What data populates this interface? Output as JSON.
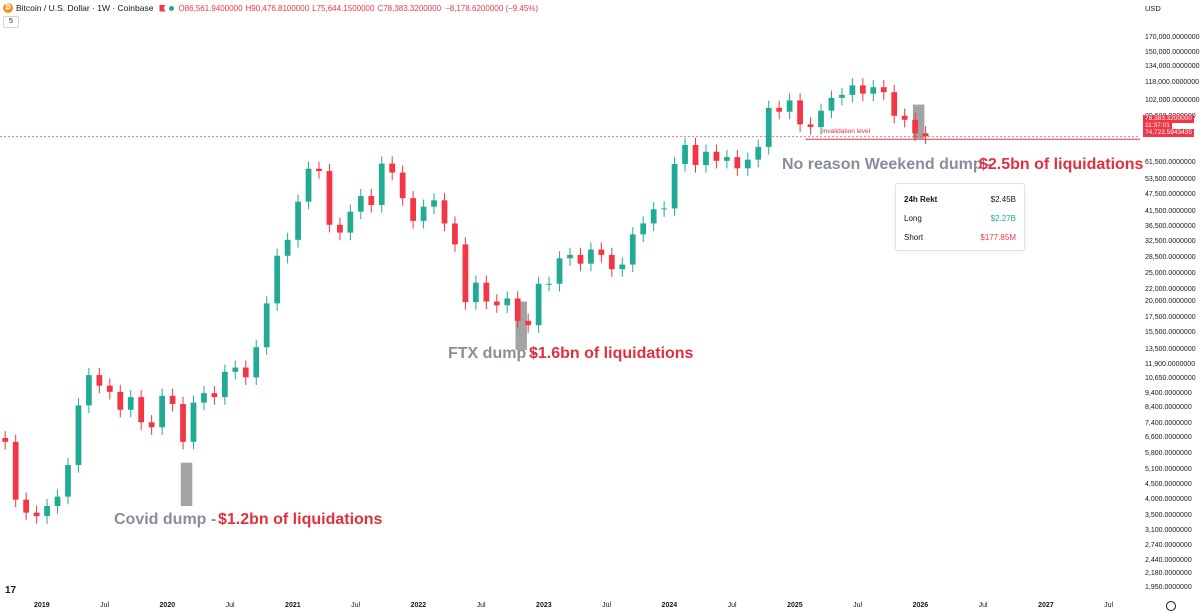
{
  "header": {
    "symbol": "Bitcoin / U.S. Dollar · 1W · Coinbase",
    "open": "O86,561.9400000",
    "high": "H90,476.8100000",
    "low": "L75,644.1500000",
    "close": "C78,383.3200000",
    "change": "−8,178.6200000 (−9.45%)",
    "interval_pill": "5"
  },
  "axis": {
    "currency": "USD"
  },
  "chart_data": {
    "type": "line",
    "title": "Bitcoin / U.S. Dollar · 1W · Coinbase",
    "price_scale": "log",
    "ylim": [
      1800,
      200000
    ],
    "xlim": [
      "2018-09",
      "2027-10"
    ],
    "y_ticks": [
      "170,000.0000000",
      "150,000.0000000",
      "134,000.0000000",
      "118,000.0000000",
      "102,000.0000000",
      "89,500.0000000",
      "61,500.0000000",
      "53,500.0000000",
      "47,500.0000000",
      "41,500.0000000",
      "36,500.0000000",
      "32,500.0000000",
      "28,500.0000000",
      "25,000.0000000",
      "22,000.0000000",
      "20,000.0000000",
      "17,500.0000000",
      "15,500.0000000",
      "13,500.0000000",
      "11,900.0000000",
      "10,650.0000000",
      "9,400.0000000",
      "8,400.0000000",
      "7,400.0000000",
      "6,600.0000000",
      "5,800.0000000",
      "5,100.0000000",
      "4,500.0000000",
      "4,000.0000000",
      "3,500.0000000",
      "3,100.0000000",
      "2,740.0000000",
      "2,440.0000000",
      "2,180.0000000",
      "1,950.0000000"
    ],
    "y_tick_values": [
      170000,
      150000,
      134000,
      118000,
      102000,
      89500,
      61500,
      53500,
      47500,
      41500,
      36500,
      32500,
      28500,
      25000,
      22000,
      20000,
      17500,
      15500,
      13500,
      11900,
      10650,
      9400,
      8400,
      7400,
      6600,
      5800,
      5100,
      4500,
      4000,
      3500,
      3100,
      2740,
      2440,
      2180,
      1950
    ],
    "x_ticks": [
      "2019",
      "Jul",
      "2020",
      "Jul",
      "2021",
      "Jul",
      "2022",
      "Jul",
      "2023",
      "Jul",
      "2024",
      "Jul",
      "2025",
      "Jul",
      "2026",
      "Jul",
      "2027",
      "Jul"
    ],
    "x_tick_values": [
      "2019-01",
      "2019-07",
      "2020-01",
      "2020-07",
      "2021-01",
      "2021-07",
      "2022-01",
      "2022-07",
      "2023-01",
      "2023-07",
      "2024-01",
      "2024-07",
      "2025-01",
      "2025-07",
      "2026-01",
      "2026-07",
      "2027-01",
      "2027-07"
    ],
    "series": [
      {
        "x": [
          "2018-09",
          "2018-10",
          "2018-11",
          "2018-12",
          "2019-01",
          "2019-02",
          "2019-03",
          "2019-04",
          "2019-05",
          "2019-06",
          "2019-07",
          "2019-08",
          "2019-09",
          "2019-10",
          "2019-11",
          "2019-12",
          "2020-01",
          "2020-02",
          "2020-03",
          "2020-04",
          "2020-05",
          "2020-06",
          "2020-07",
          "2020-08",
          "2020-09",
          "2020-10",
          "2020-11",
          "2020-12",
          "2021-01",
          "2021-02",
          "2021-03",
          "2021-04",
          "2021-05",
          "2021-06",
          "2021-07",
          "2021-08",
          "2021-09",
          "2021-10",
          "2021-11",
          "2021-12",
          "2022-01",
          "2022-02",
          "2022-03",
          "2022-04",
          "2022-05",
          "2022-06",
          "2022-07",
          "2022-08",
          "2022-09",
          "2022-10",
          "2022-11",
          "2022-12",
          "2023-01",
          "2023-02",
          "2023-03",
          "2023-04",
          "2023-05",
          "2023-06",
          "2023-07",
          "2023-08",
          "2023-09",
          "2023-10",
          "2023-11",
          "2023-12",
          "2024-01",
          "2024-02",
          "2024-03",
          "2024-04",
          "2024-05",
          "2024-06",
          "2024-07",
          "2024-08",
          "2024-09",
          "2024-10",
          "2024-11",
          "2024-12",
          "2025-01",
          "2025-02",
          "2025-03",
          "2025-04",
          "2025-05",
          "2025-06",
          "2025-07",
          "2025-08",
          "2025-09",
          "2025-10",
          "2025-11",
          "2025-12",
          "2026-01",
          "2026-02"
        ],
        "values": [
          6600,
          6400,
          4000,
          3600,
          3500,
          3800,
          4100,
          5300,
          8600,
          11000,
          10100,
          9600,
          8300,
          9200,
          7500,
          7200,
          9300,
          8700,
          6400,
          8800,
          9500,
          9200,
          11300,
          11700,
          10800,
          13800,
          19700,
          29000,
          33000,
          45000,
          58800,
          57700,
          37300,
          35000,
          41500,
          47100,
          43800,
          61300,
          57000,
          46300,
          38500,
          43200,
          45500,
          37700,
          31800,
          19900,
          23300,
          20000,
          19400,
          20500,
          17100,
          16500,
          23100,
          23100,
          28400,
          29200,
          27200,
          30500,
          29200,
          26000,
          27000,
          34500,
          37700,
          42300,
          42600,
          61100,
          71300,
          60600,
          67500,
          62700,
          64600,
          59000,
          63300,
          70200,
          96400,
          93400,
          102400,
          84300,
          82500,
          94200,
          104600,
          107100,
          115700,
          108200,
          114000,
          109500,
          90400,
          87500,
          78400,
          76500
        ]
      }
    ],
    "annotations": [
      {
        "gray": "Covid dump -",
        "red": "$1.2bn of liquidations"
      },
      {
        "gray": "FTX dump -",
        "red": "$1.6bn of liquidations"
      },
      {
        "gray": "No reason Weekend dump -",
        "red": "$2.5bn of liquidations"
      }
    ],
    "invalidation_label": "Invalidation level",
    "invalidation_price": 74723.5943435,
    "price_labels": [
      "78,383.3200000",
      "11:37:01",
      "74,723.5943435"
    ],
    "colors": {
      "up": "#22ab94",
      "down": "#f23645",
      "highlight": "#a3a3a3",
      "gray_text": "#888e99",
      "red_text": "#e0303e"
    }
  },
  "rekt_panel": {
    "rows": [
      {
        "label": "24h Rekt",
        "value": "$2.45B",
        "color": "#131722"
      },
      {
        "label": "Long",
        "value": "$2.27B",
        "color": "#22ab94"
      },
      {
        "label": "Short",
        "value": "$177.85M",
        "color": "#f23645"
      }
    ]
  }
}
